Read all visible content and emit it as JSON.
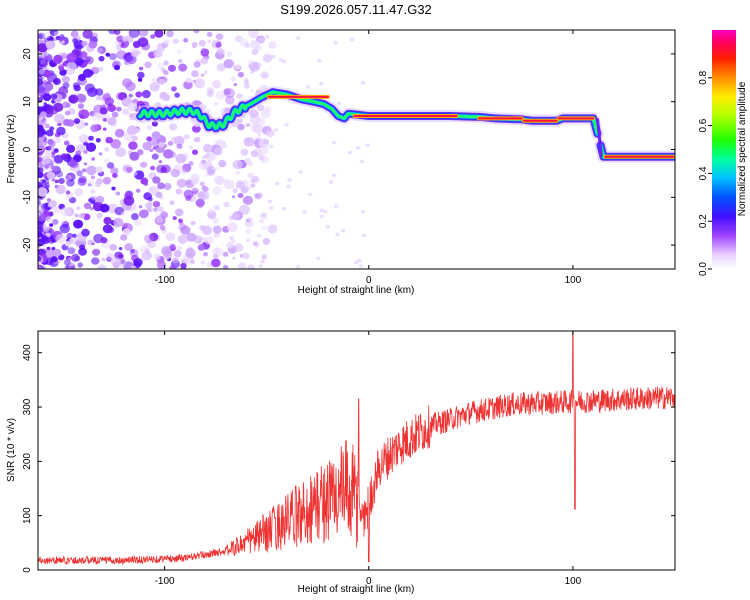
{
  "title": "S199.2026.057.11.47.G32",
  "chart_data": [
    {
      "type": "heatmap",
      "xlabel": "Height of straight line (km)",
      "ylabel": "Frequency (Hz)",
      "xlim": [
        -162,
        150
      ],
      "ylim": [
        -25,
        25
      ],
      "xticks": [
        {
          "value": -100,
          "label": "-100"
        },
        {
          "value": 0,
          "label": "0"
        },
        {
          "value": 100,
          "label": "100"
        }
      ],
      "yticks": [
        {
          "value": -20,
          "label": "-20"
        },
        {
          "value": -10,
          "label": "-10"
        },
        {
          "value": 0,
          "label": "0"
        },
        {
          "value": 10,
          "label": "10"
        },
        {
          "value": 20,
          "label": "20"
        }
      ],
      "colorbar": {
        "label": "Normalized spectral amplitude",
        "range": [
          0,
          1
        ],
        "ticks": [
          {
            "value": 0.0,
            "label": "0.0"
          },
          {
            "value": 0.2,
            "label": "0.2"
          },
          {
            "value": 0.4,
            "label": "0.4"
          },
          {
            "value": 0.6,
            "label": "0.6"
          },
          {
            "value": 0.8,
            "label": "0.8"
          }
        ]
      },
      "ridge": [
        {
          "h": -112,
          "f": 7.5
        },
        {
          "h": -100,
          "f": 7.5
        },
        {
          "h": -92,
          "f": 8.0
        },
        {
          "h": -86,
          "f": 8.0
        },
        {
          "h": -82,
          "f": 7.0
        },
        {
          "h": -78,
          "f": 5.0
        },
        {
          "h": -72,
          "f": 5.0
        },
        {
          "h": -65,
          "f": 8.0
        },
        {
          "h": -58,
          "f": 9.5
        },
        {
          "h": -52,
          "f": 11.0
        },
        {
          "h": -47,
          "f": 12.0
        },
        {
          "h": -40,
          "f": 11.5
        },
        {
          "h": -33,
          "f": 10.5
        },
        {
          "h": -27,
          "f": 10.0
        },
        {
          "h": -22,
          "f": 9.5
        },
        {
          "h": -18,
          "f": 8.5
        },
        {
          "h": -15,
          "f": 7.0
        },
        {
          "h": -12,
          "f": 6.5
        },
        {
          "h": -10,
          "f": 7.5
        },
        {
          "h": 0,
          "f": 7.0
        },
        {
          "h": 10,
          "f": 7.0
        },
        {
          "h": 40,
          "f": 7.0
        },
        {
          "h": 55,
          "f": 6.8
        },
        {
          "h": 62,
          "f": 6.5
        },
        {
          "h": 75,
          "f": 6.3
        },
        {
          "h": 80,
          "f": 6.0
        },
        {
          "h": 92,
          "f": 6.0
        },
        {
          "h": 95,
          "f": 6.5
        },
        {
          "h": 110,
          "f": 6.5
        },
        {
          "h": 115,
          "f": -1.5
        },
        {
          "h": 150,
          "f": -1.5
        }
      ],
      "core_segments": [
        [
          -49,
          -20,
          11.0
        ],
        [
          -7,
          43,
          7.0
        ],
        [
          54,
          75,
          6.5
        ],
        [
          76,
          92,
          6.0
        ],
        [
          93,
          110,
          6.5
        ],
        [
          116,
          149,
          -1.5
        ]
      ]
    },
    {
      "type": "line",
      "xlabel": "Height of straight line (km)",
      "ylabel": "SNR (10 * v/v)",
      "xlim": [
        -162,
        150
      ],
      "ylim": [
        0,
        440
      ],
      "xticks": [
        {
          "value": -100,
          "label": "-100"
        },
        {
          "value": 0,
          "label": "0"
        },
        {
          "value": 100,
          "label": "100"
        }
      ],
      "yticks": [
        {
          "value": 0,
          "label": "0"
        },
        {
          "value": 100,
          "label": "100"
        },
        {
          "value": 200,
          "label": "200"
        },
        {
          "value": 300,
          "label": "300"
        },
        {
          "value": 400,
          "label": "400"
        }
      ],
      "series": [
        {
          "name": "SNR",
          "color": "#ee3333",
          "trend": [
            {
              "h": -162,
              "v": 18
            },
            {
              "h": -120,
              "v": 18
            },
            {
              "h": -90,
              "v": 22
            },
            {
              "h": -70,
              "v": 35
            },
            {
              "h": -55,
              "v": 60
            },
            {
              "h": -40,
              "v": 90
            },
            {
              "h": -25,
              "v": 120
            },
            {
              "h": -10,
              "v": 150
            },
            {
              "h": -2,
              "v": 95
            },
            {
              "h": 5,
              "v": 190
            },
            {
              "h": 15,
              "v": 230
            },
            {
              "h": 30,
              "v": 265
            },
            {
              "h": 50,
              "v": 290
            },
            {
              "h": 70,
              "v": 305
            },
            {
              "h": 100,
              "v": 310
            },
            {
              "h": 130,
              "v": 315
            },
            {
              "h": 150,
              "v": 318
            }
          ],
          "spikes": [
            {
              "h": -5,
              "v": 315
            },
            {
              "h": 0,
              "v": 15
            },
            {
              "h": 100,
              "v": 445
            },
            {
              "h": 101,
              "v": 112
            }
          ]
        }
      ]
    }
  ]
}
